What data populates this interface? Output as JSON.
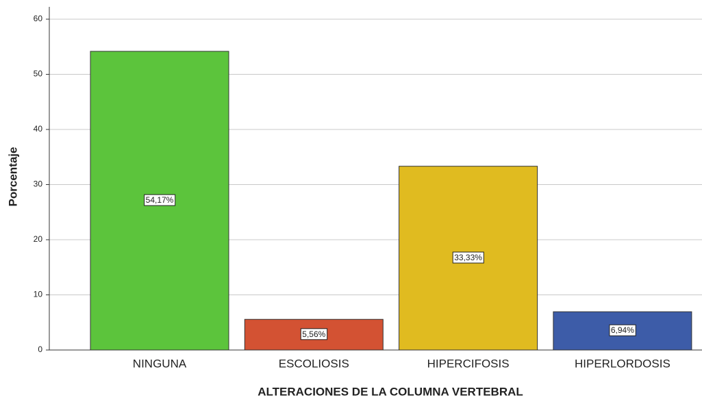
{
  "chart_data": {
    "type": "bar",
    "x_label": "ALTERACIONES DE LA COLUMNA VERTEBRAL",
    "y_label": "Porcentaje",
    "categories": [
      "NINGUNA",
      "ESCOLIOSIS",
      "HIPERCIFOSIS",
      "HIPERLORDOSIS"
    ],
    "values": [
      54.17,
      5.56,
      33.33,
      6.94
    ],
    "value_labels": [
      "54,17%",
      "5,56%",
      "33,33%",
      "6,94%"
    ],
    "colors": [
      "#5cc43c",
      "#d35233",
      "#e0bb20",
      "#3d5ca8"
    ],
    "ylim": [
      0,
      60
    ],
    "yticks": [
      0,
      10,
      20,
      30,
      40,
      50,
      60
    ],
    "grid": true
  }
}
